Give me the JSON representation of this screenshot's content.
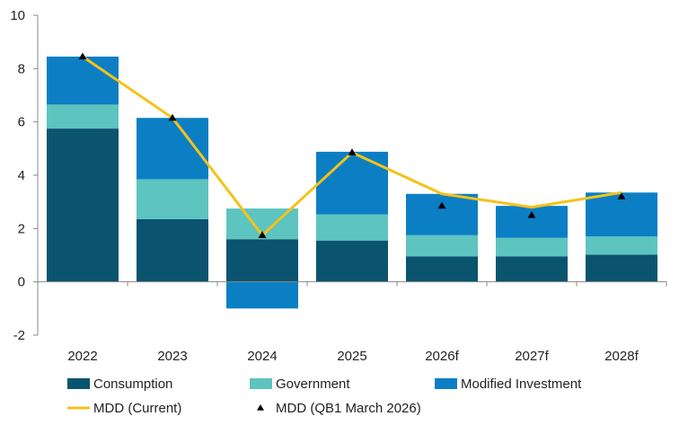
{
  "chart_data": {
    "type": "bar",
    "stacked": true,
    "categories": [
      "2022",
      "2023",
      "2024",
      "2025",
      "2026f",
      "2027f",
      "2028f"
    ],
    "ylim": [
      -2,
      10
    ],
    "yticks": [
      -2,
      0,
      2,
      4,
      6,
      8,
      10
    ],
    "ytick_labels": [
      "-2",
      "0",
      "2",
      "4",
      "6",
      "8",
      "10"
    ],
    "grid": false,
    "legend_position": "bottom",
    "series": [
      {
        "name": "Consumption",
        "kind": "bar",
        "color": "#0a5470",
        "values": [
          5.75,
          2.35,
          1.6,
          1.55,
          0.95,
          0.95,
          1.02
        ]
      },
      {
        "name": "Government",
        "kind": "bar",
        "color": "#5dc4bf",
        "values": [
          0.9,
          1.5,
          1.15,
          0.98,
          0.8,
          0.7,
          0.68
        ]
      },
      {
        "name": "Modified Investment",
        "kind": "bar",
        "color": "#0c7fc4",
        "values": [
          1.8,
          2.3,
          -1.0,
          2.35,
          1.55,
          1.2,
          1.65
        ]
      },
      {
        "name": "MDD (Current)",
        "kind": "line",
        "color": "#f5c219",
        "values": [
          8.45,
          6.15,
          1.75,
          4.85,
          3.3,
          2.8,
          3.35
        ]
      },
      {
        "name": "MDD (QB1 March 2026)",
        "kind": "marker",
        "color": "#000000",
        "values": [
          8.45,
          6.15,
          1.75,
          4.85,
          2.85,
          2.5,
          3.2
        ]
      }
    ]
  }
}
